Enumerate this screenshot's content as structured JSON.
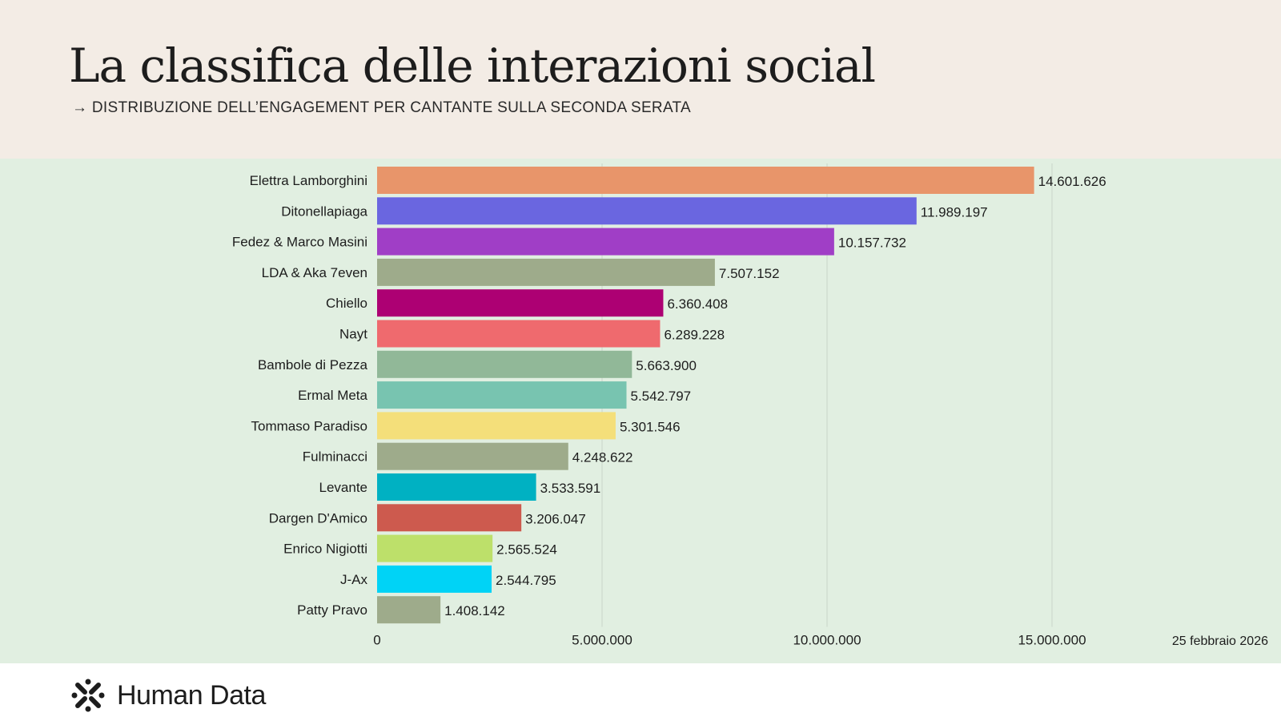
{
  "header": {
    "title": "La classifica delle interazioni social",
    "subtitle": "→ DISTRIBUZIONE DELL’ENGAGEMENT PER CANTANTE SULLA SECONDA SERATA"
  },
  "date": "25 febbraio 2026",
  "brand": {
    "name": "Human Data"
  },
  "colors": {
    "header_bg": "#f3ece5",
    "chart_bg": "#e1efe1"
  },
  "chart_data": {
    "type": "bar",
    "orientation": "horizontal",
    "title": "La classifica delle interazioni social",
    "subtitle": "→ DISTRIBUZIONE DELL’ENGAGEMENT PER CANTANTE SULLA SECONDA SERATA",
    "xlim": [
      0,
      15000000
    ],
    "xticks": [
      0,
      5000000,
      10000000,
      15000000
    ],
    "xtick_labels": [
      "0",
      "5.000.000",
      "10.000.000",
      "15.000.000"
    ],
    "grid": "vertical",
    "categories": [
      "Elettra Lamborghini",
      "Ditonellapiaga",
      "Fedez & Marco Masini",
      "LDA & Aka 7even",
      "Chiello",
      "Nayt",
      "Bambole di Pezza",
      "Ermal Meta",
      "Tommaso Paradiso",
      "Fulminacci",
      "Levante",
      "Dargen D'Amico",
      "Enrico Nigiotti",
      "J-Ax",
      "Patty Pravo"
    ],
    "values": [
      14601626,
      11989197,
      10157732,
      7507152,
      6360408,
      6289228,
      5663900,
      5542797,
      5301546,
      4248622,
      3533591,
      3206047,
      2565524,
      2544795,
      1408142
    ],
    "value_labels": [
      "14.601.626",
      "11.989.197",
      "10.157.732",
      "7.507.152",
      "6.360.408",
      "6.289.228",
      "5.663.900",
      "5.542.797",
      "5.301.546",
      "4.248.622",
      "3.533.591",
      "3.206.047",
      "2.565.524",
      "2.544.795",
      "1.408.142"
    ],
    "bar_colors": [
      "#e8956a",
      "#6a66e0",
      "#a03ec6",
      "#9eab8b",
      "#ad0073",
      "#ef6a6e",
      "#91b898",
      "#78c4b0",
      "#f4df7a",
      "#9eab8b",
      "#00b1c2",
      "#cd5a4e",
      "#bde06a",
      "#00d3f6",
      "#9eab8b"
    ]
  }
}
